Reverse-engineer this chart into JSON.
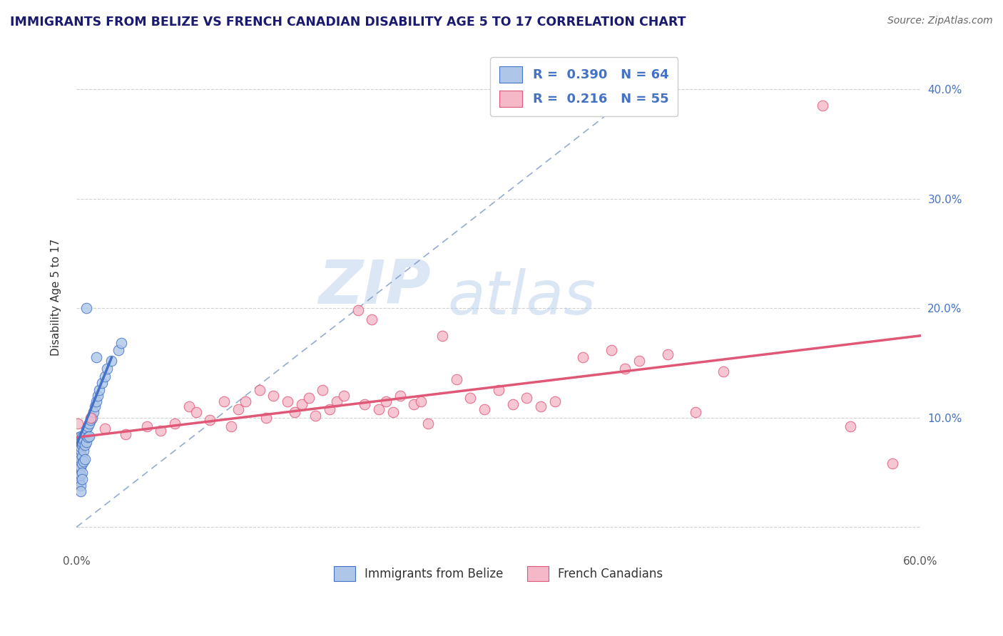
{
  "title": "IMMIGRANTS FROM BELIZE VS FRENCH CANADIAN DISABILITY AGE 5 TO 17 CORRELATION CHART",
  "source": "Source: ZipAtlas.com",
  "ylabel": "Disability Age 5 to 17",
  "xlim": [
    0.0,
    0.6
  ],
  "ylim": [
    -0.02,
    0.44
  ],
  "xticks": [
    0.0,
    0.1,
    0.2,
    0.3,
    0.4,
    0.5,
    0.6
  ],
  "xtick_labels": [
    "0.0%",
    "",
    "",
    "",
    "",
    "",
    "60.0%"
  ],
  "yticks": [
    0.0,
    0.1,
    0.2,
    0.3,
    0.4
  ],
  "ytick_labels_right": [
    "",
    "10.0%",
    "20.0%",
    "30.0%",
    "40.0%"
  ],
  "legend_label1": "Immigrants from Belize",
  "legend_label2": "French Canadians",
  "R1": 0.39,
  "N1": 64,
  "R2": 0.216,
  "N2": 55,
  "color1": "#aec6e8",
  "color2": "#f4b8c8",
  "line_color1": "#4472c4",
  "line_color2": "#e05878",
  "title_color": "#1a1a6e",
  "source_color": "#666666",
  "watermark_zip": "ZIP",
  "watermark_atlas": "atlas",
  "blue_line_x": [
    0.0,
    0.025
  ],
  "blue_line_y": [
    0.075,
    0.155
  ],
  "dash_line_x0": 0.0,
  "dash_line_y0": 0.0,
  "dash_line_x1": 0.41,
  "dash_line_y1": 0.41,
  "pink_line_x0": 0.0,
  "pink_line_y0": 0.082,
  "pink_line_x1": 0.6,
  "pink_line_y1": 0.175,
  "blue_dots_x": [
    0.001,
    0.001,
    0.001,
    0.001,
    0.001,
    0.001,
    0.001,
    0.001,
    0.001,
    0.001,
    0.002,
    0.002,
    0.002,
    0.002,
    0.002,
    0.002,
    0.002,
    0.002,
    0.002,
    0.002,
    0.003,
    0.003,
    0.003,
    0.003,
    0.003,
    0.003,
    0.003,
    0.003,
    0.003,
    0.003,
    0.004,
    0.004,
    0.004,
    0.004,
    0.004,
    0.004,
    0.004,
    0.005,
    0.005,
    0.005,
    0.006,
    0.006,
    0.006,
    0.007,
    0.007,
    0.008,
    0.008,
    0.009,
    0.009,
    0.01,
    0.011,
    0.012,
    0.013,
    0.014,
    0.015,
    0.016,
    0.018,
    0.02,
    0.022,
    0.025,
    0.03,
    0.032,
    0.007,
    0.014
  ],
  "blue_dots_y": [
    0.07,
    0.072,
    0.074,
    0.076,
    0.078,
    0.08,
    0.06,
    0.055,
    0.045,
    0.04,
    0.065,
    0.068,
    0.072,
    0.075,
    0.08,
    0.082,
    0.058,
    0.052,
    0.047,
    0.042,
    0.07,
    0.073,
    0.077,
    0.08,
    0.083,
    0.062,
    0.055,
    0.048,
    0.038,
    0.033,
    0.075,
    0.078,
    0.082,
    0.065,
    0.058,
    0.05,
    0.044,
    0.08,
    0.07,
    0.06,
    0.085,
    0.075,
    0.062,
    0.09,
    0.078,
    0.092,
    0.082,
    0.095,
    0.083,
    0.098,
    0.1,
    0.105,
    0.11,
    0.115,
    0.12,
    0.125,
    0.132,
    0.138,
    0.145,
    0.152,
    0.162,
    0.168,
    0.2,
    0.155
  ],
  "pink_dots_x": [
    0.001,
    0.01,
    0.02,
    0.035,
    0.05,
    0.06,
    0.07,
    0.08,
    0.085,
    0.095,
    0.105,
    0.11,
    0.115,
    0.12,
    0.13,
    0.135,
    0.14,
    0.15,
    0.155,
    0.16,
    0.165,
    0.17,
    0.175,
    0.18,
    0.185,
    0.19,
    0.2,
    0.205,
    0.21,
    0.215,
    0.22,
    0.225,
    0.23,
    0.24,
    0.245,
    0.25,
    0.26,
    0.27,
    0.28,
    0.29,
    0.3,
    0.31,
    0.32,
    0.33,
    0.34,
    0.36,
    0.38,
    0.39,
    0.4,
    0.42,
    0.44,
    0.46,
    0.53,
    0.55,
    0.58
  ],
  "pink_dots_y": [
    0.095,
    0.1,
    0.09,
    0.085,
    0.092,
    0.088,
    0.095,
    0.11,
    0.105,
    0.098,
    0.115,
    0.092,
    0.108,
    0.115,
    0.125,
    0.1,
    0.12,
    0.115,
    0.105,
    0.112,
    0.118,
    0.102,
    0.125,
    0.108,
    0.115,
    0.12,
    0.198,
    0.112,
    0.19,
    0.108,
    0.115,
    0.105,
    0.12,
    0.112,
    0.115,
    0.095,
    0.175,
    0.135,
    0.118,
    0.108,
    0.125,
    0.112,
    0.118,
    0.11,
    0.115,
    0.155,
    0.162,
    0.145,
    0.152,
    0.158,
    0.105,
    0.142,
    0.385,
    0.092,
    0.058
  ]
}
